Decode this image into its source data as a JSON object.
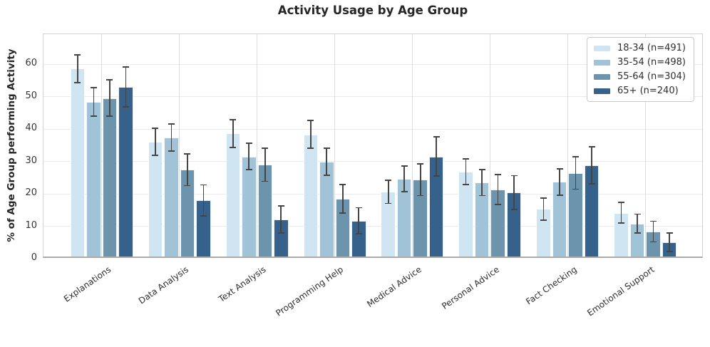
{
  "chart_data": {
    "type": "bar",
    "title": "Activity Usage by Age Group",
    "ylabel": "% of Age Group performing Activity",
    "xlabel": "",
    "categories": [
      "Explanations",
      "Data Analysis",
      "Text Analysis",
      "Programming Help",
      "Medical Advice",
      "Personal Advice",
      "Fact Checking",
      "Emotional Support"
    ],
    "series": [
      {
        "name": "18-34 (n=491)",
        "color": "#cfe6f2",
        "values": [
          58.0,
          35.4,
          38.0,
          37.7,
          20.0,
          26.2,
          14.7,
          13.5
        ],
        "errors": [
          4.3,
          4.2,
          4.3,
          4.3,
          3.6,
          4.0,
          3.4,
          3.2
        ]
      },
      {
        "name": "35-54 (n=498)",
        "color": "#a0c3d8",
        "values": [
          47.7,
          36.8,
          30.9,
          29.3,
          24.0,
          22.8,
          23.0,
          10.2
        ],
        "errors": [
          4.4,
          4.2,
          4.1,
          4.2,
          4.0,
          4.0,
          4.0,
          2.9
        ]
      },
      {
        "name": "55-64 (n=304)",
        "color": "#6c94ac",
        "values": [
          48.9,
          26.8,
          28.3,
          17.9,
          23.7,
          20.7,
          25.8,
          7.7
        ],
        "errors": [
          5.6,
          4.9,
          5.1,
          4.4,
          4.9,
          4.6,
          5.0,
          3.2
        ]
      },
      {
        "name": "65+ (n=240)",
        "color": "#35618a",
        "values": [
          52.4,
          17.3,
          11.5,
          11.1,
          30.9,
          19.8,
          28.2,
          4.4
        ],
        "errors": [
          6.2,
          4.8,
          4.2,
          4.0,
          6.0,
          5.2,
          5.7,
          2.8
        ]
      }
    ],
    "yticks": [
      0,
      10,
      20,
      30,
      40,
      50,
      60
    ],
    "ylim": [
      0,
      69.3
    ],
    "grid": {
      "horizontal": true,
      "vertical": true
    },
    "legend_position": "upper right",
    "error_bar_color": "#454545"
  }
}
